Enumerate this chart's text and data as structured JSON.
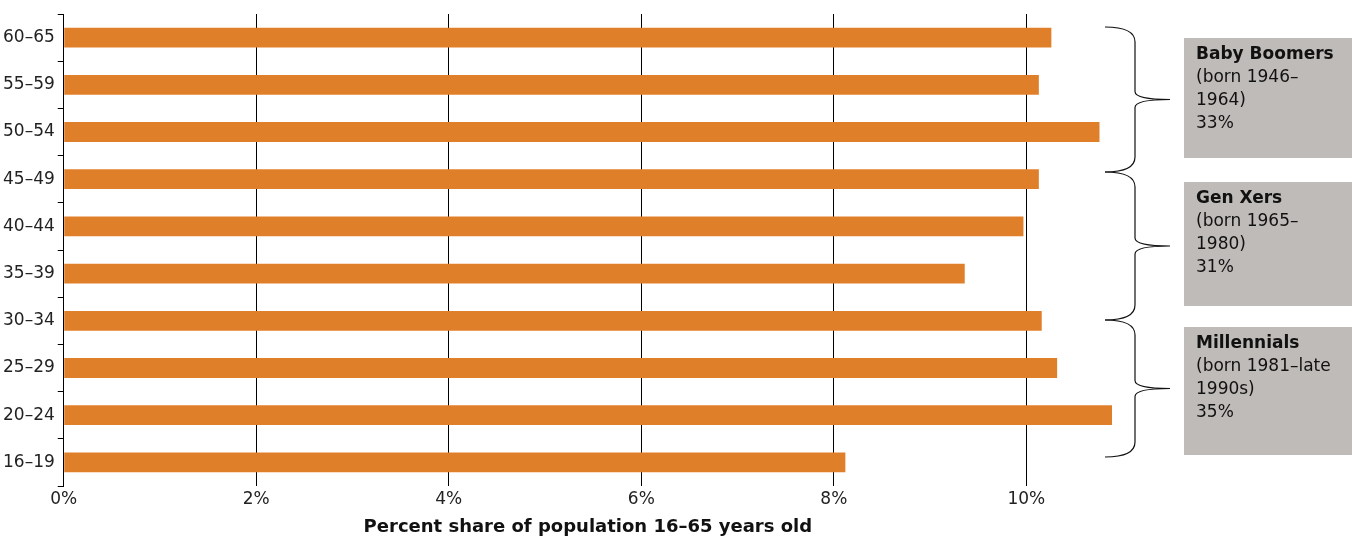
{
  "chart_data": {
    "type": "bar",
    "orientation": "horizontal",
    "xlabel": "Percent share of population 16–65 years old",
    "categories": [
      "60–65",
      "55–59",
      "50–54",
      "45–49",
      "40–44",
      "35–39",
      "30–34",
      "25–29",
      "20–24",
      "16–19"
    ],
    "values": [
      10.26,
      10.13,
      10.76,
      10.13,
      9.97,
      9.36,
      10.16,
      10.32,
      10.89,
      8.12
    ],
    "color": "#e07f2a",
    "xlim": [
      0,
      10.89
    ],
    "xticks": [
      {
        "value": 0,
        "label": "0%"
      },
      {
        "value": 2,
        "label": "2%"
      },
      {
        "value": 4,
        "label": "4%"
      },
      {
        "value": 6,
        "label": "6%"
      },
      {
        "value": 8,
        "label": "8%"
      },
      {
        "value": 10,
        "label": "10%"
      }
    ],
    "grid": "x",
    "legend": false,
    "annotations": [
      "Baby Boomers\n(born 1946–1964)\n33%",
      "Gen Xers\n(born 1965–1980)\n31%",
      "Millennials\n(born 1981–late 1990s)\n35%"
    ]
  }
}
